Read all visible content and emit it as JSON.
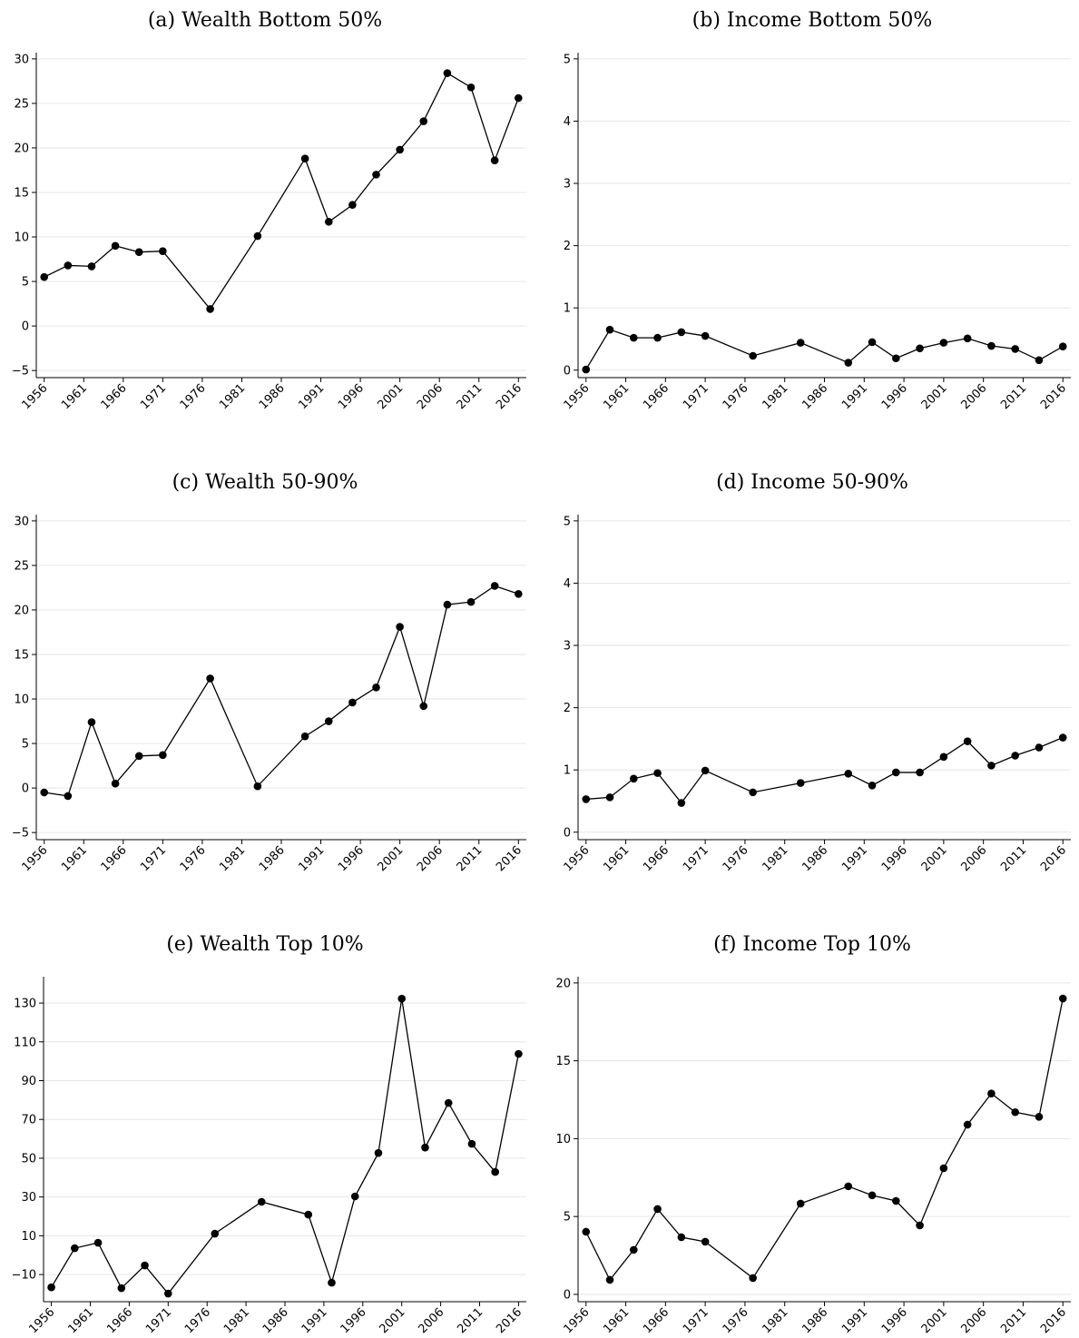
{
  "chart_data": [
    {
      "type": "line",
      "title": "(a) Wealth Bottom 50%",
      "color": "#000000",
      "grid": true,
      "x": [
        1956,
        1959,
        1962,
        1965,
        1968,
        1971,
        1977,
        1983,
        1989,
        1992,
        1995,
        1998,
        2001,
        2004,
        2007,
        2010,
        2013,
        2016
      ],
      "values": [
        5.5,
        6.8,
        6.7,
        9.0,
        8.3,
        8.4,
        1.9,
        10.1,
        18.8,
        11.7,
        13.6,
        17.0,
        19.8,
        23.0,
        28.4,
        26.8,
        18.6,
        25.6
      ],
      "xlim": [
        1955,
        2017
      ],
      "xticks": [
        1956,
        1961,
        1966,
        1971,
        1976,
        1981,
        1986,
        1991,
        1996,
        2001,
        2006,
        2011,
        2016
      ],
      "ylim": [
        -5.8,
        30.7
      ],
      "yticks": [
        {
          "value": -5,
          "label": "−5"
        },
        0,
        5,
        10,
        15,
        20,
        25,
        30
      ]
    },
    {
      "type": "line",
      "title": "(b) Income Bottom 50%",
      "color": "#000000",
      "grid": true,
      "x": [
        1956,
        1959,
        1962,
        1965,
        1968,
        1971,
        1977,
        1983,
        1989,
        1992,
        1995,
        1998,
        2001,
        2004,
        2007,
        2010,
        2013,
        2016
      ],
      "values": [
        0.01,
        0.65,
        0.52,
        0.52,
        0.61,
        0.55,
        0.23,
        0.44,
        0.12,
        0.45,
        0.19,
        0.35,
        0.44,
        0.51,
        0.39,
        0.34,
        0.16,
        0.38
      ],
      "xlim": [
        1955,
        2017
      ],
      "xticks": [
        1956,
        1961,
        1966,
        1971,
        1976,
        1981,
        1986,
        1991,
        1996,
        2001,
        2006,
        2011,
        2016
      ],
      "ylim": [
        -0.12,
        5.1
      ],
      "yticks": [
        0,
        1,
        2,
        3,
        4,
        5
      ]
    },
    {
      "type": "line",
      "title": "(c) Wealth 50-90%",
      "color": "#000000",
      "grid": true,
      "x": [
        1956,
        1959,
        1962,
        1965,
        1968,
        1971,
        1977,
        1983,
        1989,
        1992,
        1995,
        1998,
        2001,
        2004,
        2007,
        2010,
        2013,
        2016
      ],
      "values": [
        -0.5,
        -0.9,
        7.4,
        0.5,
        3.6,
        3.7,
        12.3,
        0.2,
        5.8,
        7.5,
        9.6,
        11.3,
        18.1,
        9.2,
        20.6,
        20.9,
        22.7,
        21.8
      ],
      "xlim": [
        1955,
        2017
      ],
      "xticks": [
        1956,
        1961,
        1966,
        1971,
        1976,
        1981,
        1986,
        1991,
        1996,
        2001,
        2006,
        2011,
        2016
      ],
      "ylim": [
        -5.8,
        30.7
      ],
      "yticks": [
        {
          "value": -5,
          "label": "−5"
        },
        0,
        5,
        10,
        15,
        20,
        25,
        30
      ]
    },
    {
      "type": "line",
      "title": "(d) Income 50-90%",
      "color": "#000000",
      "grid": true,
      "x": [
        1956,
        1959,
        1962,
        1965,
        1968,
        1971,
        1977,
        1983,
        1989,
        1992,
        1995,
        1998,
        2001,
        2004,
        2007,
        2010,
        2013,
        2016
      ],
      "values": [
        0.53,
        0.56,
        0.86,
        0.95,
        0.47,
        0.99,
        0.64,
        0.79,
        0.94,
        0.75,
        0.96,
        0.96,
        1.21,
        1.46,
        1.07,
        1.23,
        1.36,
        1.52
      ],
      "xlim": [
        1955,
        2017
      ],
      "xticks": [
        1956,
        1961,
        1966,
        1971,
        1976,
        1981,
        1986,
        1991,
        1996,
        2001,
        2006,
        2011,
        2016
      ],
      "ylim": [
        -0.12,
        5.1
      ],
      "yticks": [
        0,
        1,
        2,
        3,
        4,
        5
      ]
    },
    {
      "type": "line",
      "title": "(e) Wealth Top 10%",
      "color": "#000000",
      "grid": true,
      "x": [
        1956,
        1959,
        1962,
        1965,
        1968,
        1971,
        1977,
        1983,
        1989,
        1992,
        1995,
        1998,
        2001,
        2004,
        2007,
        2010,
        2013,
        2016
      ],
      "values": [
        -16.6,
        3.6,
        6.4,
        -17.0,
        -5.3,
        -19.8,
        11.1,
        27.5,
        20.9,
        -14.2,
        30.3,
        52.7,
        132.3,
        55.5,
        78.5,
        57.4,
        42.9,
        103.8
      ],
      "xlim": [
        1955,
        2017
      ],
      "xticks": [
        1956,
        1961,
        1966,
        1971,
        1976,
        1981,
        1986,
        1991,
        1996,
        2001,
        2006,
        2011,
        2016
      ],
      "ylim": [
        -24,
        143.6
      ],
      "yticks": [
        {
          "value": -10,
          "label": "−10"
        },
        10,
        30,
        50,
        70,
        90,
        110,
        130
      ]
    },
    {
      "type": "line",
      "title": "(f) Income Top 10%",
      "color": "#000000",
      "grid": true,
      "x": [
        1956,
        1959,
        1962,
        1965,
        1968,
        1971,
        1977,
        1983,
        1989,
        1992,
        1995,
        1998,
        2001,
        2004,
        2007,
        2010,
        2013,
        2016
      ],
      "values": [
        4.02,
        0.93,
        2.86,
        5.48,
        3.67,
        3.38,
        1.05,
        5.83,
        6.94,
        6.36,
        6.0,
        4.43,
        8.1,
        10.9,
        12.9,
        11.7,
        11.4,
        19.0
      ],
      "xlim": [
        1955,
        2017
      ],
      "xticks": [
        1956,
        1961,
        1966,
        1971,
        1976,
        1981,
        1986,
        1991,
        1996,
        2001,
        2006,
        2011,
        2016
      ],
      "ylim": [
        -0.47,
        20.4
      ],
      "yticks": [
        0,
        5,
        10,
        15,
        20
      ]
    }
  ]
}
